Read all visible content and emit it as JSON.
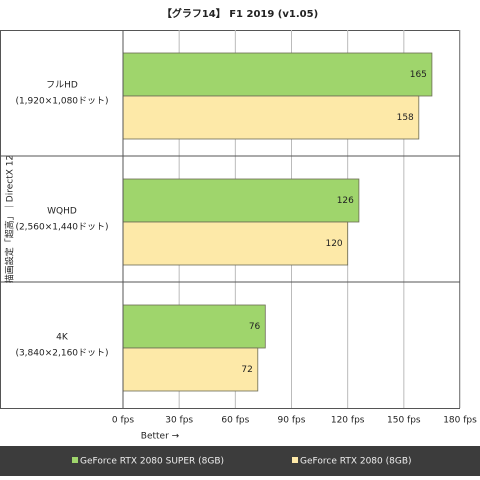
{
  "chart_data": {
    "type": "bar",
    "orientation": "horizontal",
    "title": "【グラフ14】 F1 2019 (v1.05)",
    "y_label": "描画設定「超高」｜DirectX 12",
    "x_label": "Better →",
    "categories": [
      "フルHD",
      "WQHD",
      "4K"
    ],
    "category_sublabels": [
      "(1,920×1,080ドット)",
      "(2,560×1,440ドット)",
      "(3,840×2,160ドット)"
    ],
    "series": [
      {
        "name": "GeForce RTX 2080 SUPER (8GB)",
        "color": "#9fd56c",
        "values": [
          165,
          126,
          76
        ]
      },
      {
        "name": "GeForce RTX 2080 (8GB)",
        "color": "#fde9a8",
        "values": [
          158,
          120,
          72
        ]
      }
    ],
    "xlim": [
      0,
      180
    ],
    "xticks": [
      {
        "value": 0,
        "label": "0 fps"
      },
      {
        "value": 30,
        "label": "30 fps"
      },
      {
        "value": 60,
        "label": "60 fps"
      },
      {
        "value": 90,
        "label": "90 fps"
      },
      {
        "value": 120,
        "label": "120 fps"
      },
      {
        "value": 150,
        "label": "150 fps"
      },
      {
        "value": 180,
        "label": "180 fps"
      }
    ],
    "grid": true,
    "legend": "bottom"
  }
}
